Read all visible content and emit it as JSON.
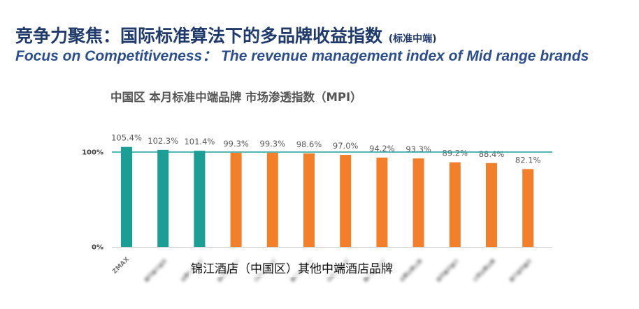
{
  "header": {
    "title_cn": "竞争力聚焦：国际标准算法下的多品牌收益指数",
    "title_cn_suffix": "(标准中端)",
    "title_en": "Focus on Competitiveness： The revenue management index of Mid range brands"
  },
  "note": "锦江酒店（中国区）其他中端酒店品牌",
  "colors": {
    "jinjiang": "#1a9e96",
    "other": "#f47f2a",
    "reference_line": "#1aa19a",
    "axis": "#d0d0d0"
  },
  "chart_data": {
    "type": "bar",
    "title": "中国区 本月标准中端品牌 市场渗透指数（MPI）",
    "xlabel": "",
    "ylabel": "",
    "ylim": [
      0,
      1.0
    ],
    "y_ticks": [
      {
        "value": 0,
        "label": "0%"
      },
      {
        "value": 1.0,
        "label": "100%"
      }
    ],
    "reference_line": 1.0,
    "categories": [
      "ZMAX",
      "",
      "",
      "",
      "",
      "",
      "",
      "",
      "",
      "",
      "",
      ""
    ],
    "values": [
      1.054,
      1.023,
      1.014,
      0.993,
      0.993,
      0.986,
      0.97,
      0.942,
      0.933,
      0.892,
      0.884,
      0.821
    ],
    "value_labels": [
      "105.4%",
      "102.3%",
      "101.4%",
      "99.3%",
      "99.3%",
      "98.6%",
      "97.0%",
      "94.2%",
      "93.3%",
      "89.2%",
      "88.4%",
      "82.1%"
    ],
    "groups": [
      "jinjiang",
      "jinjiang",
      "jinjiang",
      "other",
      "other",
      "other",
      "other",
      "other",
      "other",
      "other",
      "other",
      "other"
    ],
    "blurred_labels": [
      false,
      true,
      true,
      true,
      true,
      true,
      true,
      true,
      true,
      true,
      true,
      true
    ]
  }
}
